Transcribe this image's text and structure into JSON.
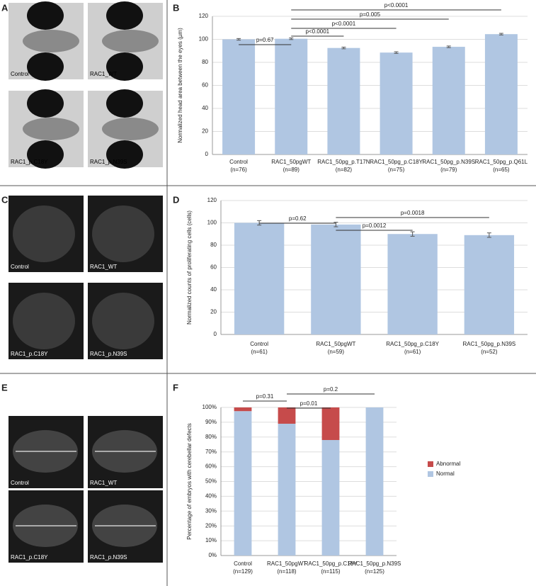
{
  "image_panels": [
    {
      "panel": "A",
      "captions": [
        "Control",
        "RAC1_WT",
        "RAC1_p.C18Y",
        "RAC1_p.N39S"
      ]
    },
    {
      "panel": "C",
      "captions": [
        "Control",
        "RAC1_WT",
        "RAC1_p.C18Y",
        "RAC1_p.N39S"
      ]
    },
    {
      "panel": "E",
      "captions": [
        "Control",
        "RAC1_WT",
        "RAC1_p.C18Y",
        "RAC1_p.N39S"
      ]
    }
  ],
  "chart_data": [
    {
      "type": "bar",
      "panel": "B",
      "y_label": "Normalized head area between the eyes (µm)",
      "categories": [
        "Control",
        "RAC1_50pgWT",
        "RAC1_50pg_p.T17N",
        "RAC1_50pg_p.C18Y",
        "RAC1_50pg_p.N39S",
        "RAC1_50pg_p.Q61L"
      ],
      "n_labels": [
        "(n=76)",
        "(n=89)",
        "(n=82)",
        "(n=75)",
        "(n=79)",
        "(n=65)"
      ],
      "values": [
        100,
        100.5,
        92.5,
        88.5,
        93.5,
        104.5
      ],
      "errors": [
        0.7,
        0.7,
        0.7,
        0.7,
        0.7,
        0.7
      ],
      "color": "#b0c6e2",
      "ylim": [
        0,
        120
      ],
      "yticks": [
        0,
        20,
        40,
        60,
        80,
        100,
        120
      ],
      "grid": true,
      "brackets": [
        {
          "from": 0,
          "to": 1,
          "label": "p=0.67"
        },
        {
          "from": 1,
          "to": 2,
          "label": "p<0.0001"
        },
        {
          "from": 1,
          "to": 3,
          "label": "p<0.0001"
        },
        {
          "from": 1,
          "to": 4,
          "label": "p=0.005"
        },
        {
          "from": 1,
          "to": 5,
          "label": "p<0.0001"
        }
      ]
    },
    {
      "type": "bar",
      "panel": "D",
      "y_label": "Normalized counts of proliferating cells (cells)",
      "categories": [
        "Control",
        "RAC1_50pgWT",
        "RAC1_50pg_p.C18Y",
        "RAC1_50pg_p.N39S"
      ],
      "n_labels": [
        "(n=61)",
        "(n=59)",
        "(n=61)",
        "(n=52)"
      ],
      "values": [
        100,
        98.5,
        90,
        89
      ],
      "errors": [
        2,
        2,
        2,
        2
      ],
      "color": "#b0c6e2",
      "ylim": [
        0,
        120
      ],
      "yticks": [
        0,
        20,
        40,
        60,
        80,
        100,
        120
      ],
      "grid": true,
      "brackets": [
        {
          "from": 0,
          "to": 1,
          "label": "p=0.62"
        },
        {
          "from": 1,
          "to": 2,
          "label": "p=0.0012"
        },
        {
          "from": 1,
          "to": 3,
          "label": "p=0.0018"
        }
      ]
    },
    {
      "type": "stacked_bar",
      "panel": "F",
      "y_label": "Percentage of embryos with cerebellar defects",
      "categories": [
        "Control",
        "RAC1_50pgWT",
        "RAC1_50pg_p.C18Y",
        "RAC1_50pg_p.N39S"
      ],
      "n_labels": [
        "(n=129)",
        "(n=118)",
        "(n=115)",
        "(n=125)"
      ],
      "series": [
        {
          "name": "Normal",
          "color": "#b0c6e2",
          "values": [
            97.5,
            89,
            78,
            100
          ]
        },
        {
          "name": "Abnormal",
          "color": "#c64b4b",
          "values": [
            2.5,
            11,
            22,
            0
          ]
        }
      ],
      "ylim": [
        0,
        100
      ],
      "yticks": [
        {
          "value": 0,
          "label": "0%"
        },
        {
          "value": 10,
          "label": "10%"
        },
        {
          "value": 20,
          "label": "20%"
        },
        {
          "value": 30,
          "label": "30%"
        },
        {
          "value": 40,
          "label": "40%"
        },
        {
          "value": 50,
          "label": "50%"
        },
        {
          "value": 60,
          "label": "60%"
        },
        {
          "value": 70,
          "label": "70%"
        },
        {
          "value": 80,
          "label": "80%"
        },
        {
          "value": 90,
          "label": "90%"
        },
        {
          "value": 100,
          "label": "100%"
        }
      ],
      "grid": true,
      "legend": "right",
      "brackets": [
        {
          "from": 0,
          "to": 1,
          "label": "p=0.31"
        },
        {
          "from": 1,
          "to": 2,
          "label": "p=0.01"
        },
        {
          "from": 1,
          "to": 3,
          "label": "p=0.2"
        }
      ]
    }
  ]
}
